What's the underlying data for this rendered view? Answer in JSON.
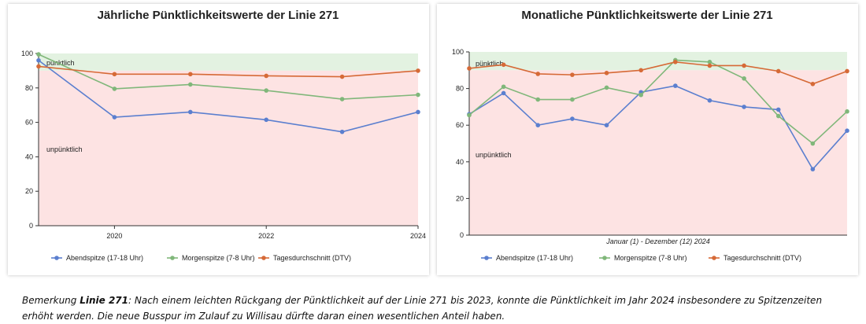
{
  "colors": {
    "abend": "#5b7fcf",
    "morgen": "#80b77a",
    "tages": "#d66a37",
    "band_punktlich": "#e3f2e1",
    "band_unpunktlich": "#fde3e3"
  },
  "chart_data": [
    {
      "type": "line",
      "title": "Jährliche Pünktlichkeitswerte der Linie 271",
      "xlabel": "",
      "ylabel": "",
      "x": [
        2019,
        2020,
        2021,
        2022,
        2023,
        2024
      ],
      "xlim": [
        2019,
        2024
      ],
      "xticks": [
        "2020",
        "2022",
        "2024"
      ],
      "xtick_values": [
        2020,
        2022,
        2024
      ],
      "ylim": [
        0,
        100
      ],
      "yticks": [
        "0",
        "20",
        "40",
        "60",
        "80",
        "100"
      ],
      "bands": [
        {
          "label": "pünktlich",
          "from": 90,
          "to": 100
        },
        {
          "label": "unpünktlich",
          "from": 0,
          "to": 90
        }
      ],
      "series": [
        {
          "name": "Abendspitze (17-18 Uhr)",
          "color_key": "abend",
          "values": [
            96,
            63,
            66,
            61.5,
            54.5,
            66
          ]
        },
        {
          "name": "Morgenspitze (7-8 Uhr)",
          "color_key": "morgen",
          "values": [
            99.5,
            79.5,
            82,
            78.5,
            73.5,
            76
          ]
        },
        {
          "name": "Tagesdurchschnitt (DTV)",
          "color_key": "tages",
          "values": [
            92.5,
            88,
            88,
            87,
            86.5,
            90
          ]
        }
      ]
    },
    {
      "type": "line",
      "title": "Monatliche Pünktlichkeitswerte der Linie 271",
      "xlabel": "Januar (1) - Dezember (12) 2024",
      "ylabel": "",
      "x": [
        1,
        2,
        3,
        4,
        5,
        6,
        7,
        8,
        9,
        10,
        11,
        12
      ],
      "xlim": [
        1,
        12
      ],
      "xticks": [],
      "xtick_values": [],
      "ylim": [
        0,
        100
      ],
      "yticks": [
        "0",
        "20",
        "40",
        "60",
        "80",
        "100"
      ],
      "bands": [
        {
          "label": "pünktlich",
          "from": 90,
          "to": 100
        },
        {
          "label": "unpünktlich",
          "from": 0,
          "to": 90
        }
      ],
      "series": [
        {
          "name": "Abendspitze (17-18 Uhr)",
          "color_key": "abend",
          "values": [
            66,
            77.5,
            60,
            63.5,
            60,
            78,
            81.5,
            73.5,
            70,
            68.5,
            36,
            57
          ]
        },
        {
          "name": "Morgenspitze (7-8 Uhr)",
          "color_key": "morgen",
          "values": [
            65.5,
            81,
            74,
            74,
            80.5,
            76.5,
            95.5,
            94.5,
            85.5,
            65,
            50,
            67.5
          ]
        },
        {
          "name": "Tagesdurchschnitt (DTV)",
          "color_key": "tages",
          "values": [
            91,
            93,
            88,
            87.5,
            88.5,
            90,
            94.5,
            92.5,
            92.5,
            89.5,
            82.5,
            89.5
          ]
        }
      ]
    }
  ],
  "remark": {
    "label": "Bemerkung ",
    "line": "Linie 271",
    "text": ": Nach einem leichten Rückgang der Pünktlichkeit auf der Linie 271 bis 2023, konnte die Pünktlichkeit im Jahr 2024 insbesondere zu Spitzenzeiten erhöht werden. Die neue Busspur im Zulauf zu Willisau dürfte daran einen wesentlichen Anteil haben."
  }
}
